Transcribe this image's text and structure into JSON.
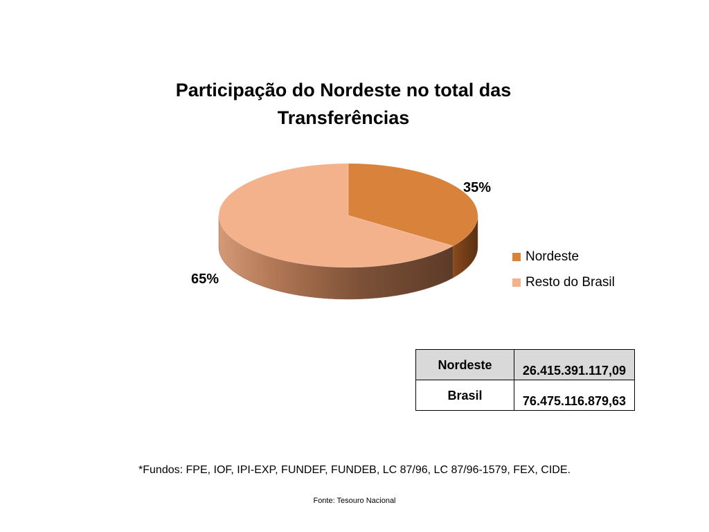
{
  "chart_data": {
    "type": "pie",
    "title": "Participação do Nordeste no total das Transferências",
    "title_lines": [
      "Participação do Nordeste no total das",
      "Transferências"
    ],
    "categories": [
      "Nordeste",
      "Resto do Brasil"
    ],
    "values": [
      35,
      65
    ],
    "data_labels": [
      "35%",
      "65%"
    ],
    "colors": [
      "#d9823b",
      "#f4b28c"
    ],
    "legend_position": "right",
    "style": "3d"
  },
  "table": {
    "rows": [
      {
        "name": "Nordeste",
        "value": "26.415.391.117,09"
      },
      {
        "name": "Brasil",
        "value": "76.475.116.879,63"
      }
    ]
  },
  "footnote": "*Fundos: FPE, IOF, IPI-EXP, FUNDEF, FUNDEB, LC 87/96, LC 87/96-1579, FEX, CIDE.",
  "source": "Fonte: Tesouro Nacional"
}
